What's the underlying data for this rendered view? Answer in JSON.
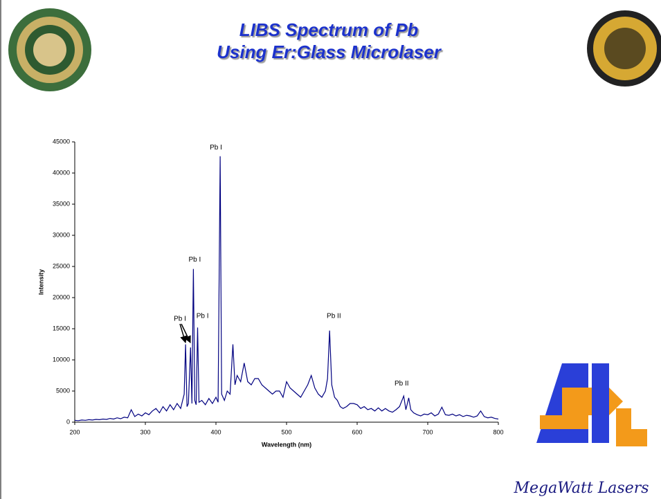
{
  "title_lines": [
    "LIBS Spectrum of Pb",
    "Using Er:Glass Microlaser"
  ],
  "footer": "MegaWatt Lasers",
  "chart_data": {
    "type": "line",
    "color": "#000080",
    "x_label": "Wavelength (nm)",
    "y_label": "Intensity",
    "xlim": [
      200,
      800
    ],
    "xticks": [
      200,
      300,
      400,
      500,
      600,
      700,
      800
    ],
    "ylim": [
      0,
      45000
    ],
    "yticks": [
      0,
      5000,
      10000,
      15000,
      20000,
      25000,
      30000,
      35000,
      40000,
      45000
    ],
    "grid": false,
    "x": [
      200,
      205,
      210,
      215,
      220,
      225,
      230,
      235,
      240,
      245,
      250,
      255,
      260,
      265,
      270,
      275,
      280,
      285,
      290,
      295,
      300,
      305,
      310,
      315,
      320,
      325,
      330,
      335,
      340,
      345,
      350,
      355,
      357,
      359,
      361,
      364,
      366,
      368,
      370,
      372,
      374,
      376,
      380,
      385,
      390,
      395,
      400,
      403,
      406,
      408,
      412,
      416,
      420,
      424,
      427,
      430,
      435,
      440,
      445,
      450,
      455,
      460,
      465,
      470,
      475,
      480,
      485,
      490,
      495,
      500,
      505,
      510,
      515,
      520,
      525,
      530,
      535,
      540,
      545,
      550,
      555,
      558,
      561,
      564,
      568,
      572,
      576,
      580,
      585,
      590,
      595,
      600,
      605,
      610,
      615,
      620,
      625,
      630,
      635,
      640,
      645,
      650,
      655,
      660,
      666,
      669,
      673,
      676,
      680,
      685,
      690,
      695,
      700,
      705,
      710,
      715,
      720,
      725,
      730,
      735,
      740,
      745,
      750,
      755,
      760,
      765,
      770,
      775,
      780,
      785,
      790,
      795,
      800
    ],
    "values": [
      300,
      250,
      350,
      300,
      400,
      350,
      450,
      400,
      500,
      450,
      600,
      500,
      700,
      550,
      800,
      700,
      2000,
      900,
      1300,
      1000,
      1500,
      1200,
      1800,
      2200,
      1500,
      2500,
      1800,
      2800,
      2000,
      3000,
      2200,
      4500,
      12500,
      2500,
      3000,
      12000,
      3000,
      24600,
      3500,
      2800,
      15200,
      3200,
      3500,
      2800,
      3800,
      3000,
      4000,
      3200,
      42700,
      4500,
      3500,
      5000,
      4500,
      12500,
      6000,
      7500,
      6500,
      9500,
      6500,
      6000,
      7000,
      7000,
      6000,
      5500,
      5000,
      4500,
      5000,
      5000,
      4000,
      6500,
      5500,
      5000,
      4500,
      4000,
      5000,
      6000,
      7500,
      5500,
      4500,
      4000,
      5000,
      7000,
      14700,
      6000,
      4000,
      3500,
      2500,
      2200,
      2500,
      3000,
      3000,
      2800,
      2200,
      2500,
      2000,
      2200,
      1800,
      2300,
      1800,
      2200,
      1800,
      1600,
      2000,
      2500,
      4200,
      2000,
      3900,
      2000,
      1500,
      1200,
      1000,
      1300,
      1200,
      1500,
      1000,
      1300,
      2400,
      1200,
      1100,
      1300,
      1000,
      1200,
      900,
      1100,
      1000,
      800,
      1000,
      1800,
      900,
      700,
      800,
      600,
      500
    ],
    "annotations": [
      {
        "text": "Pb I",
        "x": 400,
        "y": 43800
      },
      {
        "text": "Pb I",
        "x": 370,
        "y": 25800
      },
      {
        "text": "Pb I",
        "x": 381,
        "y": 16700
      },
      {
        "text": "Pb I",
        "x": 349,
        "y": 16300
      },
      {
        "text": "Pb II",
        "x": 567,
        "y": 16700
      },
      {
        "text": "Pb II",
        "x": 663,
        "y": 5900
      }
    ]
  }
}
